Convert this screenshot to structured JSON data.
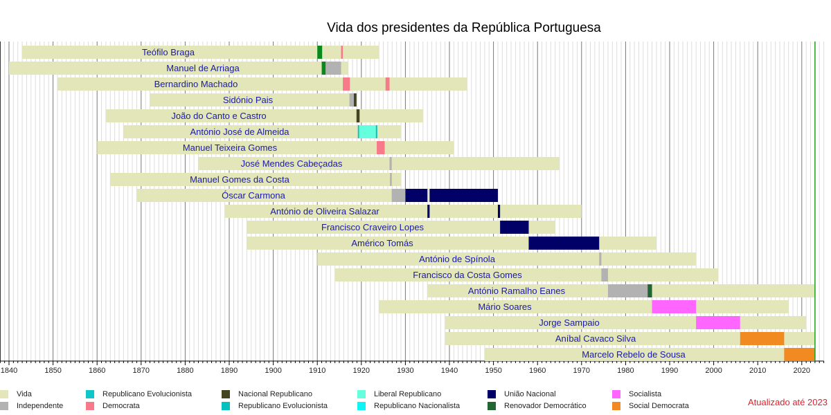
{
  "chart_data": {
    "type": "timeline",
    "title": "Vida dos presidentes da República Portuguesa",
    "xlim": [
      1838,
      2025
    ],
    "x_ticks": [
      1840,
      1850,
      1860,
      1870,
      1880,
      1890,
      1900,
      1910,
      1920,
      1930,
      1940,
      1950,
      1960,
      1970,
      1980,
      1990,
      2000,
      2010,
      2020
    ],
    "current_year": 2023,
    "parties": {
      "vida": {
        "label": "Vida",
        "color": "#e2e6b8"
      },
      "independente": {
        "label": "Independente",
        "color": "#b2b2b2"
      },
      "evolucionista1": {
        "label": "Republicano Evolucionista",
        "color": "#11c6c6"
      },
      "democrata": {
        "label": "Democrata",
        "color": "#f77a8a"
      },
      "nacional_rep": {
        "label": "Nacional Republicano",
        "color": "#444422"
      },
      "evolucionista2": {
        "label": "Republicano Evolucionista",
        "color": "#08c0c0"
      },
      "liberal": {
        "label": "Liberal Republicano",
        "color": "#66ffdd"
      },
      "nacionalista": {
        "label": "Republicano Nacionalista",
        "color": "#11f4f4"
      },
      "uniao": {
        "label": "União Nacional",
        "color": "#000066"
      },
      "prd": {
        "label": "Renovador Democrático",
        "color": "#226633"
      },
      "socialista": {
        "label": "Socialista",
        "color": "#ff66ff"
      },
      "psd": {
        "label": "Social Democrata",
        "color": "#f28a22"
      },
      "provisorio": {
        "color": "#0a8a1e"
      }
    },
    "legend_order": [
      "vida",
      "independente",
      "evolucionista1",
      "democrata",
      "nacional_rep",
      "evolucionista2",
      "liberal",
      "nacionalista",
      "uniao",
      "prd",
      "socialista",
      "psd"
    ],
    "presidents": [
      {
        "name": "Teófilo Braga",
        "born": 1843,
        "died": 1924,
        "terms": [
          [
            1910,
            1911.1,
            "provisorio"
          ],
          [
            1915.4,
            1915.8,
            "democrata"
          ]
        ]
      },
      {
        "name": "Manuel de Arriaga",
        "born": 1840,
        "died": 1917,
        "terms": [
          [
            1911,
            1911.9,
            "provisorio"
          ],
          [
            1911.9,
            1915.4,
            "independente"
          ]
        ]
      },
      {
        "name": "Bernardino Machado",
        "born": 1851,
        "died": 1944,
        "terms": [
          [
            1915.8,
            1917.4,
            "democrata"
          ],
          [
            1925.5,
            1926.4,
            "democrata"
          ]
        ]
      },
      {
        "name": "Sidónio Pais",
        "born": 1872,
        "died": 1918.9,
        "terms": [
          [
            1917.3,
            1918.3,
            "independente"
          ],
          [
            1918.3,
            1918.9,
            "nacional_rep"
          ]
        ]
      },
      {
        "name": "João do Canto e Castro",
        "born": 1862,
        "died": 1934,
        "terms": [
          [
            1918.9,
            1919.6,
            "nacional_rep"
          ]
        ]
      },
      {
        "name": "António José de Almeida",
        "born": 1866,
        "died": 1929,
        "terms": [
          [
            1919.2,
            1919.5,
            "evolucionista2"
          ],
          [
            1919.5,
            1923.3,
            "liberal"
          ],
          [
            1923.3,
            1923.5,
            "evolucionista2"
          ]
        ]
      },
      {
        "name": "Manuel Teixeira Gomes",
        "born": 1860,
        "died": 1941,
        "terms": [
          [
            1923.5,
            1925.3,
            "democrata"
          ]
        ]
      },
      {
        "name": "José Mendes Cabeçadas",
        "born": 1883,
        "died": 1965,
        "terms": [
          [
            1926.4,
            1926.9,
            "independente"
          ]
        ]
      },
      {
        "name": "Manuel Gomes da Costa",
        "born": 1863,
        "died": 1929,
        "terms": [
          [
            1926.5,
            1926.9,
            "independente"
          ]
        ]
      },
      {
        "name": "Óscar Carmona",
        "born": 1869,
        "died": 1951,
        "terms": [
          [
            1926.9,
            1930,
            "independente"
          ],
          [
            1930,
            1935,
            "uniao"
          ],
          [
            1935.5,
            1951,
            "uniao"
          ]
        ]
      },
      {
        "name": "António de Oliveira Salazar",
        "born": 1889,
        "died": 1970,
        "terms": [
          [
            1935,
            1935.5,
            "uniao"
          ],
          [
            1951,
            1951.5,
            "uniao"
          ]
        ]
      },
      {
        "name": "Francisco Craveiro Lopes",
        "born": 1894,
        "died": 1964,
        "terms": [
          [
            1951.5,
            1958,
            "uniao"
          ]
        ]
      },
      {
        "name": "Américo Tomás",
        "born": 1894,
        "died": 1987,
        "terms": [
          [
            1958,
            1974,
            "uniao"
          ]
        ]
      },
      {
        "name": "António de Spínola",
        "born": 1910,
        "died": 1996,
        "terms": [
          [
            1974,
            1974.5,
            "independente"
          ]
        ]
      },
      {
        "name": "Francisco da Costa Gomes",
        "born": 1914,
        "died": 2001,
        "terms": [
          [
            1974.5,
            1976,
            "independente"
          ]
        ]
      },
      {
        "name": "António Ramalho Eanes",
        "born": 1935,
        "died": 2023,
        "terms": [
          [
            1976,
            1985,
            "independente"
          ],
          [
            1985,
            1986,
            "prd"
          ]
        ]
      },
      {
        "name": "Mário Soares",
        "born": 1924,
        "died": 2017,
        "terms": [
          [
            1986,
            1996,
            "socialista"
          ]
        ]
      },
      {
        "name": "Jorge Sampaio",
        "born": 1939,
        "died": 2021,
        "terms": [
          [
            1996,
            2006,
            "socialista"
          ]
        ]
      },
      {
        "name": "Aníbal Cavaco Silva",
        "born": 1939,
        "died": 2023,
        "terms": [
          [
            2006,
            2016,
            "psd"
          ]
        ]
      },
      {
        "name": "Marcelo Rebelo de Sousa",
        "born": 1948,
        "died": 2023,
        "terms": [
          [
            2016,
            2023,
            "psd"
          ]
        ]
      }
    ]
  },
  "updated_note": "Atualizado até 2023"
}
